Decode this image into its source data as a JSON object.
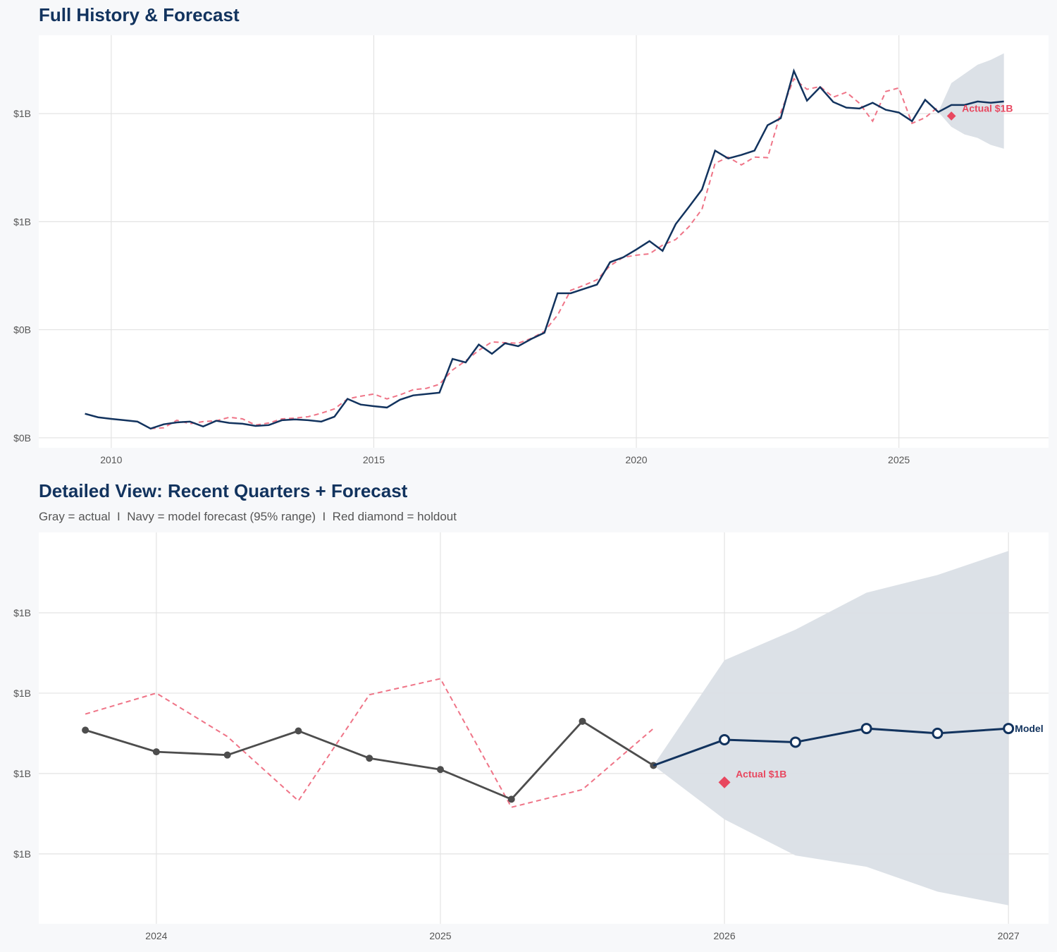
{
  "colors": {
    "navy": "#12335e",
    "red": "#e8475f",
    "red_dashed": "#ef7487",
    "gray": "#4d4d4d",
    "band": "#dadfe6",
    "grid": "#e3e3e3",
    "panel": "#ffffff",
    "background": "#f7f8fa"
  },
  "chart_data": [
    {
      "type": "line",
      "title": "Full History & Forecast",
      "xlim": [
        2008.62,
        2027.85
      ],
      "ylim": [
        -0.037,
        1.49
      ],
      "x_ticks": [
        2010,
        2015,
        2020,
        2025
      ],
      "x_tick_labels": [
        "2010",
        "2015",
        "2020",
        "2025"
      ],
      "y_ticks": [
        0.0,
        0.4,
        0.8,
        1.2
      ],
      "y_tick_labels": [
        "$0B",
        "$0B",
        "$1B",
        "$1B"
      ],
      "grid": true,
      "series": [
        {
          "style": "navy-solid",
          "x": [
            2009.5,
            2009.75,
            2010,
            2010.25,
            2010.5,
            2010.75,
            2011,
            2011.25,
            2011.5,
            2011.75,
            2012,
            2012.25,
            2012.5,
            2012.75,
            2013,
            2013.25,
            2013.5,
            2013.75,
            2014,
            2014.25,
            2014.5,
            2014.75,
            2015,
            2015.25,
            2015.5,
            2015.75,
            2016,
            2016.25,
            2016.5,
            2016.75,
            2017,
            2017.25,
            2017.5,
            2017.75,
            2018,
            2018.25,
            2018.5,
            2018.75,
            2019,
            2019.25,
            2019.5,
            2019.75,
            2020,
            2020.25,
            2020.5,
            2020.75,
            2021,
            2021.25,
            2021.5,
            2021.75,
            2022,
            2022.25,
            2022.5,
            2022.75,
            2023,
            2023.25,
            2023.5,
            2023.75,
            2024,
            2024.25,
            2024.5,
            2024.75,
            2025,
            2025.25,
            2025.5,
            2025.75,
            2026,
            2026.25,
            2026.5,
            2026.75,
            2027
          ],
          "y": [
            0.089,
            0.076,
            0.07,
            0.065,
            0.06,
            0.034,
            0.05,
            0.057,
            0.06,
            0.042,
            0.063,
            0.055,
            0.052,
            0.044,
            0.047,
            0.065,
            0.068,
            0.065,
            0.06,
            0.078,
            0.144,
            0.123,
            0.117,
            0.112,
            0.141,
            0.157,
            0.162,
            0.167,
            0.292,
            0.279,
            0.345,
            0.311,
            0.35,
            0.339,
            0.366,
            0.389,
            0.535,
            0.535,
            0.551,
            0.567,
            0.65,
            0.668,
            0.697,
            0.728,
            0.692,
            0.791,
            0.854,
            0.919,
            1.063,
            1.034,
            1.047,
            1.063,
            1.157,
            1.183,
            1.358,
            1.248,
            1.298,
            1.243,
            1.222,
            1.219,
            1.24,
            1.214,
            1.204,
            1.172,
            1.251,
            1.206,
            1.232,
            1.232,
            1.245,
            1.24,
            1.245
          ]
        },
        {
          "style": "red-dashed",
          "x": [
            2010.75,
            2011,
            2011.25,
            2011.5,
            2011.75,
            2012,
            2012.25,
            2012.5,
            2012.75,
            2013,
            2013.25,
            2013.5,
            2013.75,
            2014,
            2014.25,
            2014.5,
            2014.75,
            2015,
            2015.25,
            2015.5,
            2015.75,
            2016,
            2016.25,
            2016.5,
            2016.75,
            2017,
            2017.25,
            2017.5,
            2017.75,
            2018,
            2018.25,
            2018.5,
            2018.75,
            2019,
            2019.25,
            2019.5,
            2019.75,
            2020,
            2020.25,
            2020.5,
            2020.75,
            2021,
            2021.25,
            2021.5,
            2021.75,
            2022,
            2022.25,
            2022.5,
            2022.75,
            2023,
            2023.25,
            2023.5,
            2023.75,
            2024,
            2024.25,
            2024.5,
            2024.75,
            2025,
            2025.25,
            2025.5,
            2025.75
          ],
          "y": [
            0.034,
            0.037,
            0.065,
            0.052,
            0.06,
            0.063,
            0.076,
            0.07,
            0.047,
            0.055,
            0.07,
            0.073,
            0.078,
            0.091,
            0.107,
            0.144,
            0.154,
            0.162,
            0.144,
            0.159,
            0.178,
            0.183,
            0.198,
            0.251,
            0.285,
            0.324,
            0.355,
            0.352,
            0.35,
            0.368,
            0.394,
            0.454,
            0.546,
            0.564,
            0.585,
            0.637,
            0.668,
            0.676,
            0.681,
            0.713,
            0.734,
            0.781,
            0.846,
            1.016,
            1.039,
            1.01,
            1.039,
            1.037,
            1.204,
            1.329,
            1.29,
            1.3,
            1.261,
            1.279,
            1.238,
            1.172,
            1.282,
            1.295,
            1.164,
            1.185,
            1.225
          ]
        }
      ],
      "band": {
        "x": [
          2025.75,
          2026,
          2026.25,
          2026.5,
          2026.75,
          2027
        ],
        "upper": [
          1.206,
          1.313,
          1.347,
          1.381,
          1.399,
          1.423
        ],
        "lower": [
          1.206,
          1.151,
          1.123,
          1.11,
          1.084,
          1.07
        ]
      },
      "holdout": {
        "x": 2026.0,
        "y": 1.191,
        "label": "Actual $1B"
      }
    },
    {
      "type": "line",
      "title": "Detailed View: Recent Quarters + Forecast",
      "subtitle": "Gray = actual  I  Navy = model forecast (95% range)  I  Red diamond = holdout",
      "xlim": [
        2023.586,
        2027.141
      ],
      "ylim": [
        1.013,
        1.5
      ],
      "x_ticks": [
        2024,
        2025,
        2026,
        2027
      ],
      "x_tick_labels": [
        "2024",
        "2025",
        "2026",
        "2027"
      ],
      "y_ticks": [
        1.1,
        1.2,
        1.3,
        1.4
      ],
      "y_tick_labels": [
        "$1B",
        "$1B",
        "$1B",
        "$1B"
      ],
      "grid": true,
      "actual": {
        "x": [
          2023.75,
          2024,
          2024.25,
          2024.5,
          2024.75,
          2025,
          2025.25,
          2025.5,
          2025.75
        ],
        "y": [
          1.254,
          1.227,
          1.223,
          1.253,
          1.219,
          1.205,
          1.168,
          1.265,
          1.21
        ]
      },
      "dashed": {
        "x": [
          2023.75,
          2024,
          2024.25,
          2024.5,
          2024.75,
          2025,
          2025.25,
          2025.5,
          2025.75
        ],
        "y": [
          1.274,
          1.3,
          1.246,
          1.166,
          1.298,
          1.318,
          1.158,
          1.18,
          1.256
        ]
      },
      "forecast": {
        "x": [
          2025.75,
          2026,
          2026.25,
          2026.5,
          2026.75,
          2027
        ],
        "y": [
          1.21,
          1.242,
          1.239,
          1.256,
          1.25,
          1.256
        ],
        "label": "Model"
      },
      "band": {
        "x": [
          2025.75,
          2026,
          2026.25,
          2026.5,
          2026.75,
          2027
        ],
        "upper": [
          1.21,
          1.341,
          1.379,
          1.425,
          1.447,
          1.477
        ],
        "lower": [
          1.21,
          1.143,
          1.098,
          1.084,
          1.053,
          1.036
        ]
      },
      "holdout": {
        "x": 2026.0,
        "y": 1.189,
        "label": "Actual $1B"
      }
    }
  ]
}
